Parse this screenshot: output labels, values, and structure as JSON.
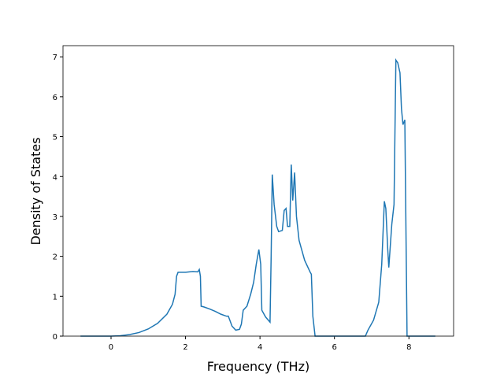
{
  "chart_data": {
    "type": "line",
    "xlabel": "Frequency (THz)",
    "ylabel": "Density of States",
    "x": [
      -0.82,
      0,
      0.25,
      0.5,
      0.75,
      1.0,
      1.25,
      1.5,
      1.65,
      1.72,
      1.76,
      1.8,
      2.0,
      2.2,
      2.33,
      2.37,
      2.4,
      2.42,
      2.5,
      2.65,
      2.8,
      2.95,
      3.1,
      3.15,
      3.25,
      3.35,
      3.45,
      3.5,
      3.55,
      3.65,
      3.75,
      3.83,
      3.9,
      3.97,
      4.02,
      4.05,
      4.15,
      4.27,
      4.3,
      4.33,
      4.38,
      4.45,
      4.5,
      4.6,
      4.65,
      4.7,
      4.74,
      4.8,
      4.84,
      4.88,
      4.93,
      4.98,
      5.05,
      5.2,
      5.35,
      5.38,
      5.42,
      5.48,
      6.0,
      6.83,
      6.9,
      7.05,
      7.19,
      7.27,
      7.34,
      7.38,
      7.43,
      7.46,
      7.54,
      7.6,
      7.65,
      7.7,
      7.76,
      7.8,
      7.84,
      7.89,
      7.95,
      8.71
    ],
    "series": [
      {
        "color": "#1f77b4",
        "values": [
          0,
          0,
          0.01,
          0.04,
          0.09,
          0.18,
          0.32,
          0.55,
          0.8,
          1.05,
          1.5,
          1.6,
          1.6,
          1.62,
          1.61,
          1.67,
          1.5,
          0.75,
          0.73,
          0.68,
          0.62,
          0.55,
          0.5,
          0.5,
          0.25,
          0.15,
          0.17,
          0.3,
          0.65,
          0.75,
          1.05,
          1.35,
          1.8,
          2.17,
          1.8,
          0.65,
          0.48,
          0.35,
          2.0,
          4.05,
          3.3,
          2.75,
          2.62,
          2.65,
          3.15,
          3.2,
          2.75,
          2.75,
          4.3,
          3.4,
          4.1,
          3.0,
          2.4,
          1.9,
          1.6,
          1.55,
          0.5,
          0,
          0,
          0,
          0.15,
          0.4,
          0.85,
          1.8,
          3.38,
          3.2,
          2.2,
          1.72,
          2.8,
          3.3,
          6.92,
          6.85,
          6.6,
          5.7,
          5.3,
          5.42,
          0,
          0
        ]
      }
    ],
    "xlim": [
      -1.29,
      9.2
    ],
    "ylim": [
      0,
      7.28
    ],
    "xticks": [
      0,
      2,
      4,
      6,
      8
    ],
    "yticks": [
      0,
      1,
      2,
      3,
      4,
      5,
      6,
      7
    ]
  }
}
